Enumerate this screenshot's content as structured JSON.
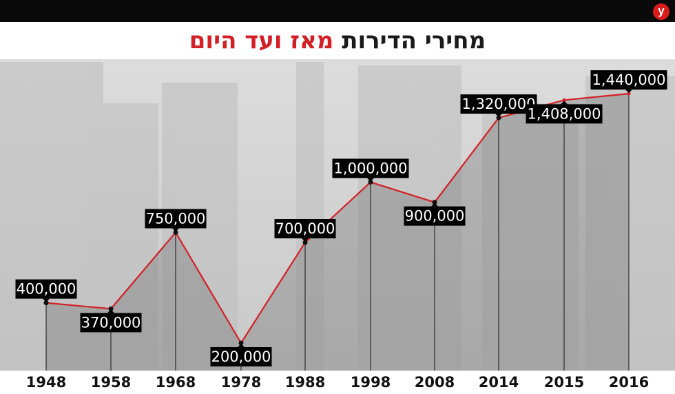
{
  "header": {
    "logo": "y",
    "title_part1": "מחירי הדירות",
    "title_part2": "מאז ועד היום"
  },
  "colors": {
    "line": "#d31f26",
    "title_accent": "#d31f26",
    "logo": "#d81b1b",
    "label_bg": "#000000"
  },
  "chart_data": {
    "type": "line",
    "categories": [
      "1948",
      "1958",
      "1968",
      "1978",
      "1988",
      "1998",
      "2008",
      "2014",
      "2015",
      "2016"
    ],
    "series": [
      {
        "values": [
          400000,
          370000,
          750000,
          200000,
          700000,
          1000000,
          900000,
          1320000,
          1408000,
          1440000
        ]
      }
    ],
    "data_labels": [
      "400,000",
      "370,000",
      "750,000",
      "200,000",
      "700,000",
      "1,000,000",
      "900,000",
      "1,320,000",
      "1,408,000",
      "1,440,000"
    ],
    "title": "מחירי הדירות מאז ועד היום",
    "xlabel": "",
    "ylabel": "",
    "grid": false,
    "legend": "none"
  }
}
